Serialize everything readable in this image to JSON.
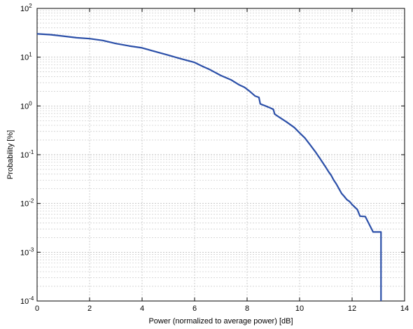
{
  "chart_data": {
    "type": "line",
    "xlabel": "Power (normalized to average power) [dB]",
    "ylabel": "Probability [%]",
    "xlim": [
      0,
      14
    ],
    "ylim": [
      0.0001,
      100
    ],
    "yscale": "log",
    "grid": true,
    "x_ticks": [
      "0",
      "2",
      "4",
      "6",
      "8",
      "10",
      "12",
      "14"
    ],
    "y_ticks": [
      {
        "base": "10",
        "exp": "-4"
      },
      {
        "base": "10",
        "exp": "-3"
      },
      {
        "base": "10",
        "exp": "-2"
      },
      {
        "base": "10",
        "exp": "-1"
      },
      {
        "base": "10",
        "exp": "0"
      },
      {
        "base": "10",
        "exp": "1"
      },
      {
        "base": "10",
        "exp": "2"
      }
    ],
    "line_color": "#2b4fa8",
    "series": [
      {
        "x": [
          0,
          0.5,
          1.0,
          1.5,
          2.0,
          2.5,
          3.0,
          3.5,
          4.0,
          4.5,
          5.0,
          5.5,
          6.0,
          6.3,
          6.6,
          7.0,
          7.4,
          7.7,
          7.9,
          8.1,
          8.3,
          8.45,
          8.5,
          8.6,
          8.7,
          8.8,
          8.9,
          9.0,
          9.05,
          9.2,
          9.5,
          9.8,
          10.0,
          10.2,
          10.4,
          10.6,
          10.8,
          11.0,
          11.1,
          11.2,
          11.3,
          11.4,
          11.5,
          11.6,
          11.7,
          11.8,
          11.9,
          12.0,
          12.2,
          12.3,
          12.5,
          12.8,
          13.0,
          13.1,
          13.1
        ],
        "y": [
          30,
          29,
          27,
          25,
          24,
          22,
          19,
          17,
          15.5,
          13,
          11,
          9.2,
          7.8,
          6.5,
          5.5,
          4.2,
          3.4,
          2.7,
          2.4,
          2.0,
          1.6,
          1.5,
          1.1,
          1.05,
          1.0,
          0.95,
          0.9,
          0.85,
          0.68,
          0.6,
          0.47,
          0.36,
          0.28,
          0.22,
          0.16,
          0.115,
          0.08,
          0.055,
          0.045,
          0.038,
          0.03,
          0.025,
          0.02,
          0.016,
          0.014,
          0.012,
          0.011,
          0.0095,
          0.0075,
          0.0055,
          0.0054,
          0.0026,
          0.0026,
          0.0026,
          0.0001
        ]
      }
    ]
  }
}
